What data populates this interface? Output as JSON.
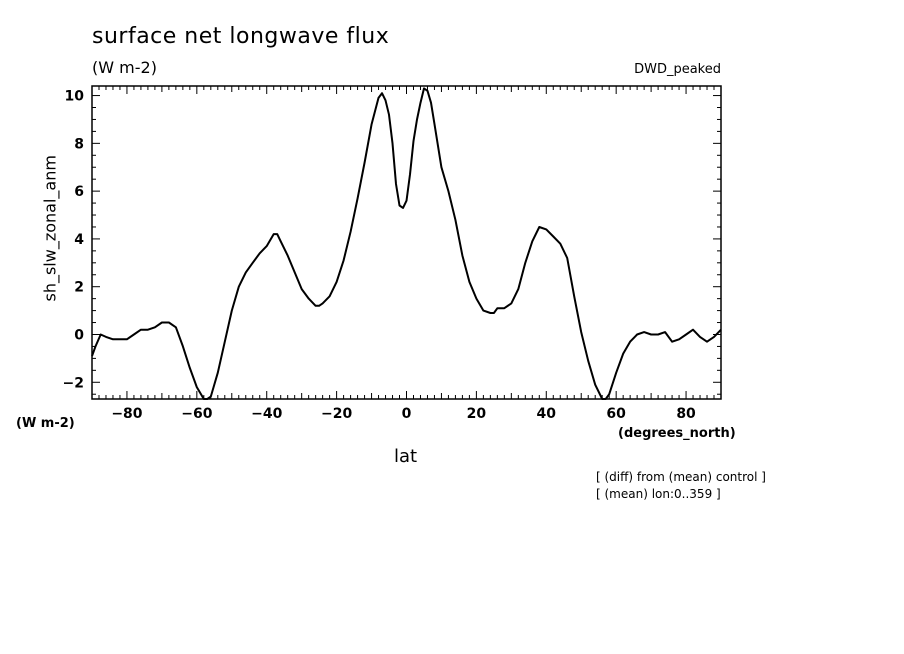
{
  "header": {
    "title": "surface net longwave flux",
    "units": "(W m-2)",
    "experiment": "DWD_peaked"
  },
  "axes": {
    "units_left": "(W m-2)",
    "x_unit": "(degrees_north)"
  },
  "notes": [
    "[ (diff) from (mean) control ]",
    "[ (mean) lon:0..359 ]"
  ],
  "chart_data": {
    "type": "line",
    "xlabel": "lat",
    "ylabel": "sh_slw_zonal_anm",
    "xlim": [
      -90,
      90
    ],
    "ylim": [
      -2.7,
      10.4
    ],
    "x_ticks": [
      -80,
      -60,
      -40,
      -20,
      0,
      20,
      40,
      60,
      80
    ],
    "y_ticks": [
      -2,
      0,
      2,
      4,
      6,
      8,
      10
    ],
    "grid": false,
    "series": [
      {
        "color": "#000000",
        "x": [
          -90,
          -89,
          -87.5,
          -86,
          -84,
          -82,
          -80,
          -78,
          -76,
          -74,
          -72,
          -70,
          -68,
          -66,
          -64,
          -62,
          -60,
          -58,
          -57,
          -56,
          -54,
          -52,
          -50,
          -48,
          -46,
          -44,
          -42,
          -40,
          -38,
          -37,
          -36,
          -34,
          -32,
          -30,
          -28,
          -26,
          -25,
          -24,
          -22,
          -20,
          -18,
          -16,
          -14,
          -12,
          -10,
          -8,
          -7,
          -6,
          -5,
          -4,
          -3,
          -2,
          -1,
          0,
          1,
          2,
          3,
          4,
          5,
          6,
          7,
          8,
          10,
          12,
          14,
          16,
          18,
          20,
          22,
          24,
          25,
          26,
          28,
          30,
          32,
          34,
          36,
          38,
          40,
          42,
          44,
          46,
          48,
          50,
          52,
          54,
          56,
          57,
          58,
          60,
          62,
          64,
          66,
          68,
          70,
          72,
          74,
          76,
          78,
          80,
          82,
          84,
          86,
          88,
          90
        ],
        "values": [
          -0.9,
          -0.5,
          0,
          -0.1,
          -0.2,
          -0.2,
          -0.2,
          0,
          0.2,
          0.2,
          0.3,
          0.5,
          0.5,
          0.3,
          -0.5,
          -1.4,
          -2.2,
          -2.7,
          -2.7,
          -2.6,
          -1.6,
          -0.3,
          1.0,
          2.0,
          2.6,
          3.0,
          3.4,
          3.7,
          4.2,
          4.2,
          3.9,
          3.3,
          2.6,
          1.9,
          1.5,
          1.2,
          1.2,
          1.3,
          1.6,
          2.2,
          3.1,
          4.3,
          5.7,
          7.2,
          8.8,
          9.9,
          10.1,
          9.8,
          9.2,
          8.0,
          6.3,
          5.4,
          5.3,
          5.6,
          6.7,
          8.1,
          9.0,
          9.7,
          10.3,
          10.2,
          9.7,
          8.8,
          7.0,
          6.0,
          4.8,
          3.3,
          2.2,
          1.5,
          1.0,
          0.9,
          0.9,
          1.1,
          1.1,
          1.3,
          1.9,
          3.0,
          3.9,
          4.5,
          4.4,
          4.1,
          3.8,
          3.2,
          1.6,
          0.1,
          -1.1,
          -2.1,
          -2.7,
          -2.7,
          -2.5,
          -1.6,
          -0.8,
          -0.3,
          0,
          0.1,
          0,
          0,
          0.1,
          -0.3,
          -0.2,
          0,
          0.2,
          -0.1,
          -0.3,
          -0.1,
          0.2
        ]
      }
    ]
  }
}
